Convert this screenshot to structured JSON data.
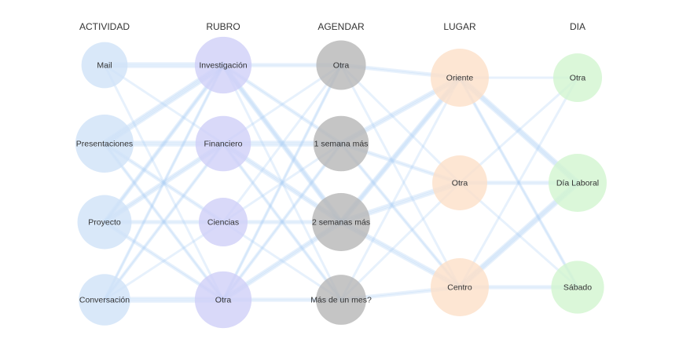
{
  "colors": {
    "link": "#a9cdf3",
    "actividad": "#cfe2f7",
    "rubro": "#cfcff7",
    "agendar": "#b7b7b7",
    "lugar": "#fce0c8",
    "dia": "#d2f5d0"
  },
  "columns": [
    {
      "id": "actividad",
      "title": "ACTIVIDAD",
      "nodes": [
        {
          "id": "mail",
          "label": "Mail",
          "weight": 0.55
        },
        {
          "id": "presentaciones",
          "label": "Presentaciones",
          "weight": 1.0
        },
        {
          "id": "proyecto",
          "label": "Proyecto",
          "weight": 0.85
        },
        {
          "id": "conversacion",
          "label": "Conversación",
          "weight": 0.75
        }
      ]
    },
    {
      "id": "rubro",
      "title": "RUBRO",
      "nodes": [
        {
          "id": "investigacion",
          "label": "Investigación",
          "weight": 0.95
        },
        {
          "id": "financiero",
          "label": "Financiero",
          "weight": 0.9
        },
        {
          "id": "ciencias",
          "label": "Ciencias",
          "weight": 0.65
        },
        {
          "id": "otra_r",
          "label": "Otra",
          "weight": 0.95
        }
      ]
    },
    {
      "id": "agendar",
      "title": "AGENDAR",
      "nodes": [
        {
          "id": "otra_a",
          "label": "Otra",
          "weight": 0.68
        },
        {
          "id": "semana1",
          "label": "1 semana más",
          "weight": 0.9
        },
        {
          "id": "semanas2",
          "label": "2 semanas más",
          "weight": 1.0
        },
        {
          "id": "mes",
          "label": "Más de un mes?",
          "weight": 0.7
        }
      ]
    },
    {
      "id": "lugar",
      "title": "LUGAR",
      "nodes": [
        {
          "id": "oriente",
          "label": "Oriente",
          "weight": 1.0
        },
        {
          "id": "otra_l",
          "label": "Otra",
          "weight": 0.88
        },
        {
          "id": "centro",
          "label": "Centro",
          "weight": 1.0
        }
      ]
    },
    {
      "id": "dia",
      "title": "DIA",
      "nodes": [
        {
          "id": "otra_d",
          "label": "Otra",
          "weight": 0.65
        },
        {
          "id": "laboral",
          "label": "Día Laboral",
          "weight": 1.0
        },
        {
          "id": "sabado",
          "label": "Sábado",
          "weight": 0.8
        }
      ]
    }
  ],
  "links": [
    [
      "mail",
      "investigacion",
      3
    ],
    [
      "mail",
      "financiero",
      1
    ],
    [
      "mail",
      "otra_r",
      1
    ],
    [
      "presentaciones",
      "investigacion",
      4
    ],
    [
      "presentaciones",
      "financiero",
      3
    ],
    [
      "presentaciones",
      "ciencias",
      2
    ],
    [
      "presentaciones",
      "otra_r",
      2
    ],
    [
      "proyecto",
      "investigacion",
      3
    ],
    [
      "proyecto",
      "financiero",
      3
    ],
    [
      "proyecto",
      "ciencias",
      2
    ],
    [
      "proyecto",
      "otra_r",
      2
    ],
    [
      "conversacion",
      "investigacion",
      2
    ],
    [
      "conversacion",
      "financiero",
      2
    ],
    [
      "conversacion",
      "ciencias",
      1
    ],
    [
      "conversacion",
      "otra_r",
      3
    ],
    [
      "investigacion",
      "otra_a",
      2
    ],
    [
      "investigacion",
      "semana1",
      2
    ],
    [
      "investigacion",
      "semanas2",
      4
    ],
    [
      "investigacion",
      "mes",
      1
    ],
    [
      "financiero",
      "otra_a",
      1
    ],
    [
      "financiero",
      "semana1",
      3
    ],
    [
      "financiero",
      "semanas2",
      3
    ],
    [
      "financiero",
      "mes",
      2
    ],
    [
      "ciencias",
      "otra_a",
      1
    ],
    [
      "ciencias",
      "semana1",
      1
    ],
    [
      "ciencias",
      "semanas2",
      2
    ],
    [
      "ciencias",
      "mes",
      1
    ],
    [
      "otra_r",
      "otra_a",
      2
    ],
    [
      "otra_r",
      "semana1",
      2
    ],
    [
      "otra_r",
      "semanas2",
      3
    ],
    [
      "otra_r",
      "mes",
      2
    ],
    [
      "otra_a",
      "oriente",
      2
    ],
    [
      "otra_a",
      "otra_l",
      1
    ],
    [
      "otra_a",
      "centro",
      1
    ],
    [
      "semana1",
      "oriente",
      3
    ],
    [
      "semana1",
      "otra_l",
      2
    ],
    [
      "semana1",
      "centro",
      2
    ],
    [
      "semanas2",
      "oriente",
      4
    ],
    [
      "semanas2",
      "otra_l",
      3
    ],
    [
      "semanas2",
      "centro",
      3
    ],
    [
      "mes",
      "oriente",
      1
    ],
    [
      "mes",
      "otra_l",
      1
    ],
    [
      "mes",
      "centro",
      2
    ],
    [
      "oriente",
      "otra_d",
      1
    ],
    [
      "oriente",
      "laboral",
      4
    ],
    [
      "oriente",
      "sabado",
      2
    ],
    [
      "otra_l",
      "otra_d",
      1
    ],
    [
      "otra_l",
      "laboral",
      2
    ],
    [
      "otra_l",
      "sabado",
      1
    ],
    [
      "centro",
      "otra_d",
      1
    ],
    [
      "centro",
      "laboral",
      4
    ],
    [
      "centro",
      "sabado",
      2
    ]
  ]
}
